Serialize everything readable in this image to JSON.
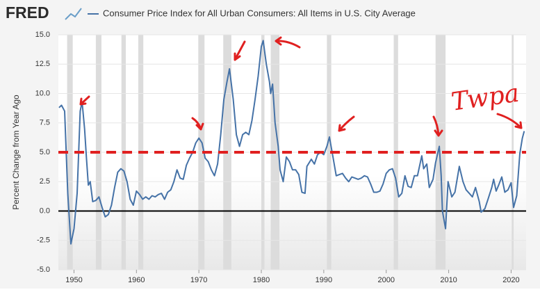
{
  "header": {
    "logo": "FRED"
  },
  "chart_data": {
    "type": "line",
    "y_label": "Percent Change from Year Ago",
    "annotation": "Twpa",
    "x": [
      1947.6,
      1948.0,
      1948.5,
      1949.0,
      1949.5,
      1950.0,
      1950.5,
      1951.0,
      1951.3,
      1951.7,
      1952.0,
      1952.3,
      1952.6,
      1953.0,
      1953.5,
      1954.0,
      1954.5,
      1955.0,
      1955.5,
      1956.0,
      1956.5,
      1957.0,
      1957.5,
      1958.0,
      1958.5,
      1959.0,
      1959.5,
      1960.0,
      1960.5,
      1961.0,
      1961.5,
      1962.0,
      1962.5,
      1963.0,
      1963.5,
      1964.0,
      1964.5,
      1965.0,
      1965.5,
      1966.0,
      1966.5,
      1967.0,
      1967.5,
      1968.0,
      1968.5,
      1969.0,
      1969.5,
      1970.0,
      1970.5,
      1971.0,
      1971.5,
      1972.0,
      1972.5,
      1973.0,
      1973.5,
      1974.0,
      1974.5,
      1974.9,
      1975.5,
      1976.0,
      1976.5,
      1977.0,
      1977.5,
      1978.0,
      1978.5,
      1979.0,
      1979.5,
      1980.0,
      1980.3,
      1980.8,
      1981.3,
      1981.5,
      1981.8,
      1982.2,
      1982.7,
      1983.0,
      1983.5,
      1984.0,
      1984.5,
      1985.0,
      1985.5,
      1986.0,
      1986.5,
      1987.0,
      1987.3,
      1988.0,
      1988.5,
      1989.0,
      1989.5,
      1990.0,
      1990.5,
      1990.9,
      1991.5,
      1992.0,
      1992.5,
      1993.0,
      1993.5,
      1994.0,
      1994.5,
      1995.0,
      1995.5,
      1996.0,
      1996.5,
      1997.0,
      1997.5,
      1998.0,
      1998.5,
      1999.0,
      1999.5,
      2000.0,
      2000.5,
      2001.0,
      2001.5,
      2002.0,
      2002.5,
      2003.0,
      2003.5,
      2004.0,
      2004.5,
      2005.0,
      2005.7,
      2006.0,
      2006.5,
      2006.9,
      2007.5,
      2007.9,
      2008.5,
      2008.8,
      2009.0,
      2009.5,
      2009.9,
      2010.5,
      2011.0,
      2011.7,
      2012.3,
      2012.8,
      2013.3,
      2013.8,
      2014.3,
      2014.9,
      2015.2,
      2015.8,
      2016.3,
      2016.9,
      2017.2,
      2017.6,
      2018.0,
      2018.5,
      2019.0,
      2019.5,
      2020.0,
      2020.4,
      2020.9,
      2021.4,
      2021.8,
      2022.1
    ],
    "series": [
      {
        "name": "Consumer Price Index for All Urban Consumers: All Items in U.S. City Average",
        "color": "#4572a7",
        "values": [
          8.8,
          9.0,
          8.5,
          1.5,
          -2.8,
          -1.5,
          1.5,
          8.5,
          9.3,
          7.0,
          4.5,
          2.2,
          2.5,
          0.8,
          0.9,
          1.2,
          0.3,
          -0.5,
          -0.3,
          0.5,
          2.0,
          3.3,
          3.6,
          3.4,
          2.5,
          1.0,
          0.5,
          1.7,
          1.4,
          1.0,
          1.2,
          1.0,
          1.3,
          1.2,
          1.4,
          1.5,
          1.0,
          1.6,
          1.8,
          2.5,
          3.5,
          2.8,
          2.7,
          3.9,
          4.5,
          5.0,
          5.8,
          6.2,
          5.8,
          4.5,
          4.2,
          3.5,
          3.0,
          4.0,
          6.5,
          9.5,
          11.0,
          12.1,
          9.5,
          6.5,
          5.5,
          6.5,
          6.7,
          6.5,
          7.7,
          9.5,
          11.5,
          14.0,
          14.5,
          12.5,
          11.0,
          10.0,
          10.8,
          7.5,
          5.5,
          3.5,
          2.5,
          4.6,
          4.2,
          3.5,
          3.5,
          3.1,
          1.6,
          1.5,
          3.8,
          4.4,
          4.0,
          4.8,
          5.0,
          4.8,
          5.5,
          6.3,
          4.5,
          3.0,
          3.1,
          3.2,
          2.8,
          2.5,
          2.9,
          2.8,
          2.7,
          2.8,
          3.0,
          2.9,
          2.3,
          1.6,
          1.6,
          1.7,
          2.3,
          3.2,
          3.5,
          3.6,
          2.8,
          1.2,
          1.5,
          3.0,
          2.1,
          2.0,
          3.0,
          3.0,
          4.7,
          3.6,
          4.0,
          2.0,
          2.7,
          4.1,
          5.5,
          3.0,
          0.0,
          -1.5,
          2.5,
          1.2,
          1.6,
          3.8,
          2.5,
          1.8,
          1.5,
          1.2,
          2.0,
          0.8,
          -0.1,
          0.2,
          1.0,
          2.0,
          2.7,
          1.7,
          2.2,
          2.9,
          1.6,
          1.8,
          2.4,
          0.3,
          1.3,
          4.9,
          6.2,
          6.8
        ]
      }
    ],
    "recessions": [
      [
        1948.9,
        1949.8
      ],
      [
        1953.5,
        1954.4
      ],
      [
        1957.6,
        1958.3
      ],
      [
        1960.3,
        1961.1
      ],
      [
        1969.9,
        1970.9
      ],
      [
        1973.9,
        1975.2
      ],
      [
        1980.0,
        1980.5
      ],
      [
        1981.5,
        1982.9
      ],
      [
        1990.5,
        1991.2
      ],
      [
        2001.2,
        2001.9
      ],
      [
        2007.9,
        2009.5
      ],
      [
        2020.1,
        2020.4
      ]
    ],
    "reference_line": {
      "value": 5,
      "color": "#e02020"
    },
    "zero_line": 0,
    "xlim": [
      1947.5,
      2022.4
    ],
    "xticks": [
      1950,
      1960,
      1970,
      1980,
      1990,
      2000,
      2010,
      2020
    ],
    "ylim": [
      -5,
      15
    ],
    "yticks": [
      {
        "value": -5,
        "label": "-5.0"
      },
      -2.5,
      {
        "value": 0,
        "label": "0.0"
      },
      2.5,
      {
        "value": 5,
        "label": "5.0"
      },
      7.5,
      {
        "value": 10,
        "label": "10.0"
      },
      12.5,
      {
        "value": 15,
        "label": "15.0"
      }
    ],
    "grid": true
  }
}
